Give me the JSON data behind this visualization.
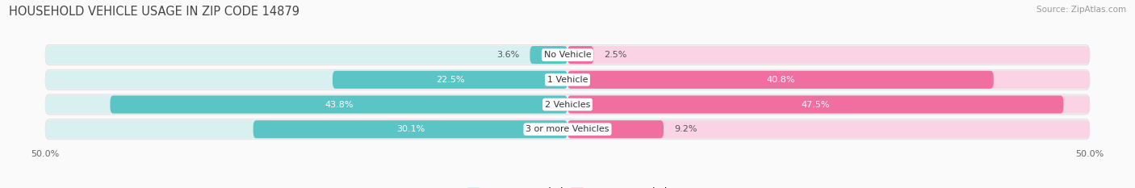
{
  "title": "HOUSEHOLD VEHICLE USAGE IN ZIP CODE 14879",
  "source": "Source: ZipAtlas.com",
  "categories": [
    "No Vehicle",
    "1 Vehicle",
    "2 Vehicles",
    "3 or more Vehicles"
  ],
  "owner_values": [
    3.6,
    22.5,
    43.8,
    30.1
  ],
  "renter_values": [
    2.5,
    40.8,
    47.5,
    9.2
  ],
  "owner_color": "#5BC4C4",
  "renter_color": "#F06EA0",
  "owner_light": "#D8F0F0",
  "renter_light": "#FAD4E4",
  "row_bg_color": "#F0F0F0",
  "background_color": "#FAFAFA",
  "xlim": 50.0,
  "title_fontsize": 10.5,
  "value_fontsize": 8.0,
  "cat_fontsize": 8.0,
  "tick_fontsize": 8.0,
  "legend_fontsize": 8.5,
  "source_fontsize": 7.5
}
